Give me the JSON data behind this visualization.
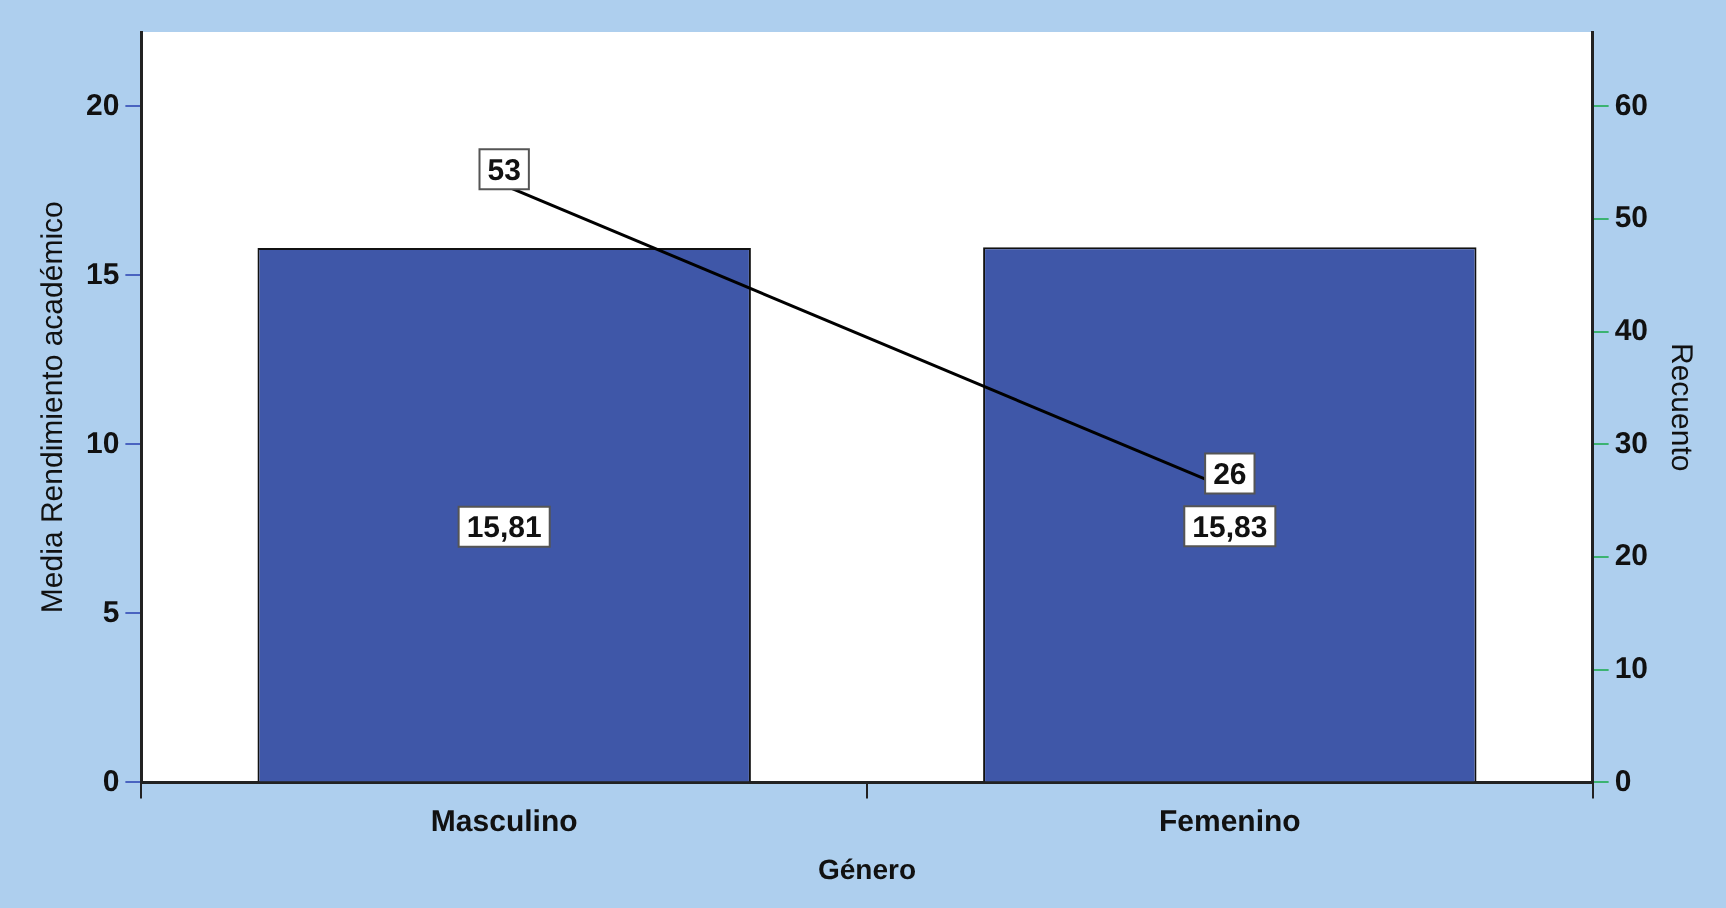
{
  "chart_data": {
    "type": "bar",
    "xlabel": "Género",
    "ylabel": "Media Rendimiento académico",
    "y2label": "Recuento",
    "categories": [
      "Masculino",
      "Femenino"
    ],
    "series": [
      {
        "color": "#3f57a8",
        "values": [
          15.81,
          15.83
        ],
        "value_labels": [
          "15,81",
          "15,83"
        ]
      },
      {
        "type": "line",
        "axis": "y2",
        "color": "#000000",
        "values": [
          53,
          26
        ],
        "value_labels": [
          "53",
          "26"
        ]
      }
    ],
    "ylim": [
      0,
      22.2
    ],
    "yticks": [
      0,
      5,
      10,
      15,
      20
    ],
    "y2lim": [
      0,
      66.6
    ],
    "y2ticks": [
      0,
      10,
      20,
      30,
      40,
      50,
      60
    ],
    "grid": false,
    "legend": false
  }
}
